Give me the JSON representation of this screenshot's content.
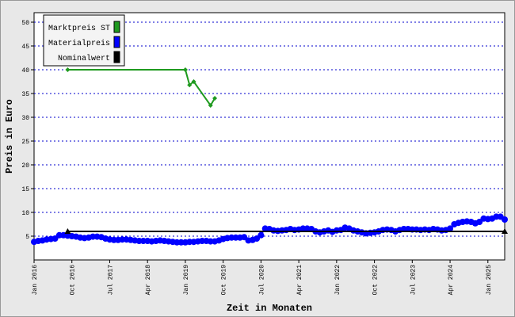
{
  "chart_data": {
    "type": "line",
    "xlabel": "Zeit in Monaten",
    "ylabel": "Preis in Euro",
    "xlim": [
      "2016-01",
      "2025-05"
    ],
    "ylim": [
      0,
      52
    ],
    "yticks": [
      5,
      10,
      15,
      20,
      25,
      30,
      35,
      40,
      45,
      50
    ],
    "xticks": [
      {
        "value": "2016-01",
        "label": "Jan 2016"
      },
      {
        "value": "2016-10",
        "label": "Oct 2016"
      },
      {
        "value": "2017-07",
        "label": "Jul 2017"
      },
      {
        "value": "2018-04",
        "label": "Apr 2018"
      },
      {
        "value": "2019-01",
        "label": "Jan 2019"
      },
      {
        "value": "2019-10",
        "label": "Oct 2019"
      },
      {
        "value": "2020-07",
        "label": "Jul 2020"
      },
      {
        "value": "2021-04",
        "label": "Apr 2021"
      },
      {
        "value": "2022-01",
        "label": "Jan 2022"
      },
      {
        "value": "2022-10",
        "label": "Oct 2022"
      },
      {
        "value": "2023-07",
        "label": "Jul 2023"
      },
      {
        "value": "2024-04",
        "label": "Apr 2024"
      },
      {
        "value": "2025-01",
        "label": "Jan 2025"
      }
    ],
    "grid": true,
    "legend": "top-left",
    "series": [
      {
        "name": "Marktpreis ST",
        "color": "#1f9a1f",
        "marker": "diamond",
        "x": [
          "2016-09",
          "2019-01",
          "2019-02",
          "2019-03",
          "2019-07",
          "2019-08"
        ],
        "values": [
          40,
          40,
          36.8,
          37.5,
          32.5,
          34
        ]
      },
      {
        "name": "Materialpreis",
        "color": "#0000ff",
        "marker": "circle",
        "x": [
          "2016-01",
          "2016-02",
          "2016-03",
          "2016-04",
          "2016-05",
          "2016-06",
          "2016-07",
          "2016-08",
          "2016-09",
          "2016-10",
          "2016-11",
          "2016-12",
          "2017-01",
          "2017-02",
          "2017-03",
          "2017-04",
          "2017-05",
          "2017-06",
          "2017-07",
          "2017-08",
          "2017-09",
          "2017-10",
          "2017-11",
          "2017-12",
          "2018-01",
          "2018-02",
          "2018-03",
          "2018-04",
          "2018-05",
          "2018-06",
          "2018-07",
          "2018-08",
          "2018-09",
          "2018-10",
          "2018-11",
          "2018-12",
          "2019-01",
          "2019-02",
          "2019-03",
          "2019-04",
          "2019-05",
          "2019-06",
          "2019-07",
          "2019-08",
          "2019-09",
          "2019-10",
          "2019-11",
          "2019-12",
          "2020-01",
          "2020-02",
          "2020-03",
          "2020-04",
          "2020-05",
          "2020-06",
          "2020-07",
          "2020-08",
          "2020-09",
          "2020-10",
          "2020-11",
          "2020-12",
          "2021-01",
          "2021-02",
          "2021-03",
          "2021-04",
          "2021-05",
          "2021-06",
          "2021-07",
          "2021-08",
          "2021-09",
          "2021-10",
          "2021-11",
          "2021-12",
          "2022-01",
          "2022-02",
          "2022-03",
          "2022-04",
          "2022-05",
          "2022-06",
          "2022-07",
          "2022-08",
          "2022-09",
          "2022-10",
          "2022-11",
          "2022-12",
          "2023-01",
          "2023-02",
          "2023-03",
          "2023-04",
          "2023-05",
          "2023-06",
          "2023-07",
          "2023-08",
          "2023-09",
          "2023-10",
          "2023-11",
          "2023-12",
          "2024-01",
          "2024-02",
          "2024-03",
          "2024-04",
          "2024-05",
          "2024-06",
          "2024-07",
          "2024-08",
          "2024-09",
          "2024-10",
          "2024-11",
          "2024-12",
          "2025-01",
          "2025-02",
          "2025-03",
          "2025-04",
          "2025-05"
        ],
        "values": [
          3.8,
          4.0,
          4.1,
          4.3,
          4.4,
          4.5,
          5.2,
          5.2,
          5.1,
          5.0,
          4.9,
          4.7,
          4.6,
          4.7,
          4.9,
          4.9,
          4.8,
          4.5,
          4.3,
          4.2,
          4.2,
          4.3,
          4.3,
          4.2,
          4.1,
          4.0,
          4.0,
          4.0,
          3.9,
          4.0,
          4.1,
          4.0,
          3.9,
          3.8,
          3.7,
          3.7,
          3.7,
          3.8,
          3.8,
          3.9,
          4.0,
          4.0,
          3.9,
          3.9,
          4.1,
          4.4,
          4.6,
          4.7,
          4.7,
          4.7,
          4.8,
          4.1,
          4.2,
          4.5,
          5.2,
          6.6,
          6.5,
          6.2,
          6.1,
          6.2,
          6.3,
          6.5,
          6.3,
          6.4,
          6.6,
          6.6,
          6.5,
          6.0,
          5.8,
          6.0,
          6.2,
          5.9,
          6.2,
          6.3,
          6.8,
          6.6,
          6.2,
          6.0,
          5.8,
          5.6,
          5.7,
          5.8,
          6.0,
          6.3,
          6.4,
          6.3,
          6.0,
          6.3,
          6.5,
          6.5,
          6.4,
          6.4,
          6.3,
          6.4,
          6.3,
          6.5,
          6.4,
          6.2,
          6.3,
          6.6,
          7.5,
          7.8,
          8.0,
          8.1,
          8.0,
          7.7,
          8.0,
          8.7,
          8.6,
          8.7,
          9.1,
          9.1,
          8.5
        ]
      },
      {
        "name": "Nominalwert",
        "color": "#000000",
        "marker": "triangle",
        "x": [
          "2016-09",
          "2025-05"
        ],
        "values": [
          6,
          6
        ]
      }
    ]
  }
}
